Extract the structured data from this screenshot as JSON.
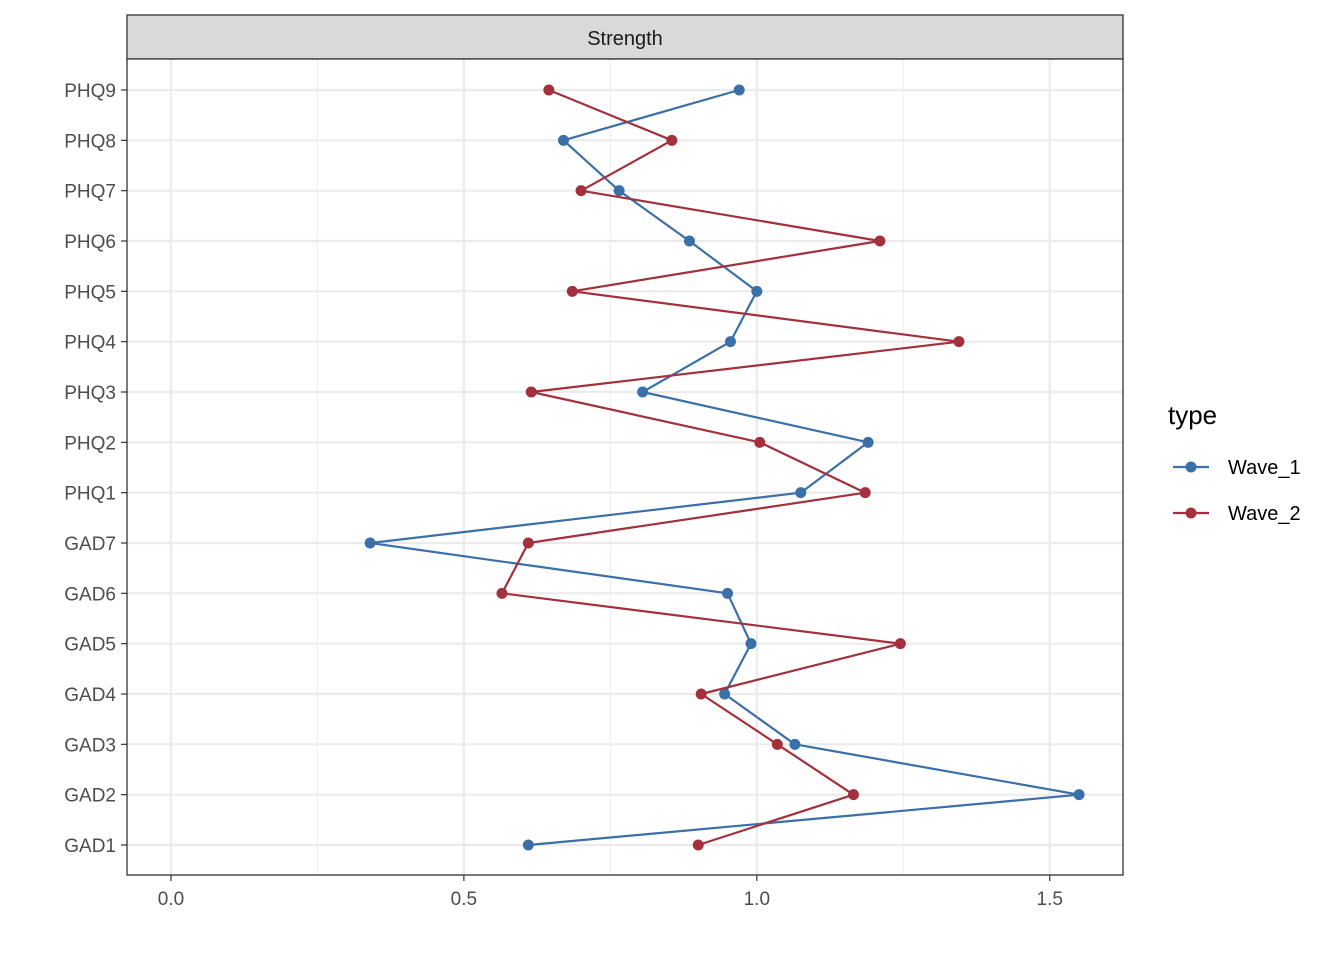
{
  "chart_data": {
    "type": "line",
    "facet_title": "Strength",
    "orientation": "horizontal",
    "categories": [
      "GAD1",
      "GAD2",
      "GAD3",
      "GAD4",
      "GAD5",
      "GAD6",
      "GAD7",
      "PHQ1",
      "PHQ2",
      "PHQ3",
      "PHQ4",
      "PHQ5",
      "PHQ6",
      "PHQ7",
      "PHQ8",
      "PHQ9"
    ],
    "xlim": [
      -0.075,
      1.625
    ],
    "x_ticks": [
      0.0,
      0.5,
      1.0,
      1.5
    ],
    "x_tick_labels": [
      "0.0",
      "0.5",
      "1.0",
      "1.5"
    ],
    "grid": true,
    "legend": {
      "title": "type",
      "position": "right"
    },
    "series": [
      {
        "name": "Wave_1",
        "color": "#3b6fa8",
        "values": [
          0.61,
          1.55,
          1.065,
          0.945,
          0.99,
          0.95,
          0.34,
          1.075,
          1.19,
          0.805,
          0.955,
          1.0,
          0.885,
          0.765,
          0.67,
          0.97
        ]
      },
      {
        "name": "Wave_2",
        "color": "#a3303c",
        "values": [
          0.9,
          1.165,
          1.035,
          0.905,
          1.245,
          0.565,
          0.61,
          1.185,
          1.005,
          0.615,
          1.345,
          0.685,
          1.21,
          0.7,
          0.855,
          0.645
        ]
      }
    ]
  }
}
